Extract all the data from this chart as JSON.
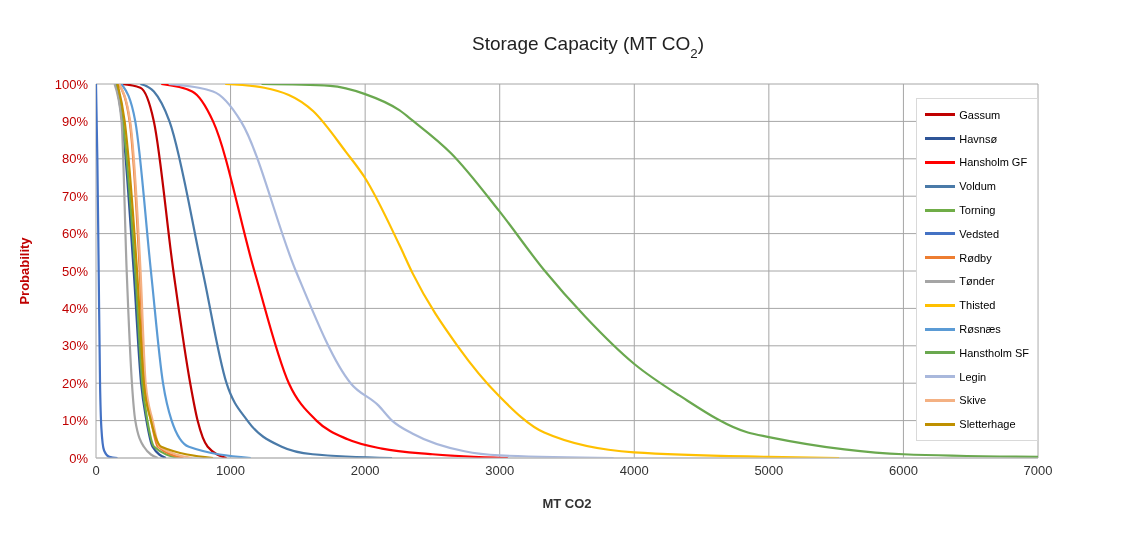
{
  "chart_data": {
    "type": "line",
    "title": "Storage Capacity (MT CO$_{2}$)",
    "xlabel": "MT CO2",
    "ylabel": "Probability",
    "xlim": [
      0,
      7000
    ],
    "xticks": [
      0,
      1000,
      2000,
      3000,
      4000,
      5000,
      6000,
      7000
    ],
    "ylim": [
      0,
      100
    ],
    "yticks": [
      {
        "value": 0,
        "label": "0%"
      },
      {
        "value": 10,
        "label": "10%"
      },
      {
        "value": 20,
        "label": "20%"
      },
      {
        "value": 30,
        "label": "30%"
      },
      {
        "value": 40,
        "label": "40%"
      },
      {
        "value": 50,
        "label": "50%"
      },
      {
        "value": 60,
        "label": "60%"
      },
      {
        "value": 70,
        "label": "70%"
      },
      {
        "value": 80,
        "label": "80%"
      },
      {
        "value": 90,
        "label": "90%"
      },
      {
        "value": 100,
        "label": "100%"
      }
    ],
    "grid": true,
    "legend": "right",
    "marker": "none",
    "line_style": "solid",
    "series": [
      {
        "name": "Gassum",
        "color": "#c00000",
        "x": [
          190,
          330,
          430,
          575,
          700,
          755,
          830,
          970
        ],
        "values": [
          100,
          99,
          90,
          50,
          20,
          10,
          3,
          0
        ]
      },
      {
        "name": "Havnsø",
        "color": "#2f5597",
        "x": [
          150,
          195,
          280,
          335,
          375,
          420,
          520
        ],
        "values": [
          100,
          90,
          50,
          20,
          10,
          3,
          0
        ]
      },
      {
        "name": "Hansholm GF",
        "color": "#ff0000",
        "x": [
          485,
          715,
          870,
          1177,
          1433,
          1638,
          1870,
          2125,
          2500,
          3060
        ],
        "values": [
          100,
          98,
          90,
          50,
          20,
          10,
          5,
          2.5,
          1,
          0
        ]
      },
      {
        "name": "Voldum",
        "color": "#4a7aa8",
        "x": [
          330,
          430,
          546,
          792,
          970,
          1125,
          1380,
          1610,
          2200
        ],
        "values": [
          100,
          98,
          90,
          50,
          20,
          10,
          3,
          1,
          0
        ]
      },
      {
        "name": "Torning",
        "color": "#70ad47",
        "x": [
          151,
          200,
          292,
          344,
          382,
          432,
          613
        ],
        "values": [
          100,
          90,
          50,
          20,
          10,
          3,
          0
        ]
      },
      {
        "name": "Vedsted",
        "color": "#4472c4",
        "x": [
          0,
          10,
          20,
          30,
          40,
          60,
          100,
          160
        ],
        "values": [
          100,
          80,
          50,
          20,
          8,
          2,
          0.3,
          0
        ]
      },
      {
        "name": "Rødby",
        "color": "#ed7d31",
        "x": [
          170,
          250,
          325,
          362,
          410,
          460,
          650
        ],
        "values": [
          100,
          90,
          50,
          20,
          10,
          3,
          0
        ]
      },
      {
        "name": "Tønder",
        "color": "#a5a5a5",
        "x": [
          138,
          190,
          228,
          267,
          292,
          356,
          460
        ],
        "values": [
          100,
          90,
          50,
          20,
          10,
          3,
          0
        ]
      },
      {
        "name": "Thisted",
        "color": "#ffc000",
        "x": [
          960,
          1250,
          1615,
          1854,
          1997,
          2254,
          2354,
          2690,
          2997,
          3331,
          3998,
          5000,
          5523
        ],
        "values": [
          100,
          99,
          92.7,
          82,
          75,
          57,
          49.3,
          29.8,
          16.5,
          6.8,
          1.5,
          0.3,
          0
        ]
      },
      {
        "name": "Røsnæs",
        "color": "#5b9bd5",
        "x": [
          190,
          292,
          408,
          498,
          562,
          690,
          1150
        ],
        "values": [
          100,
          90,
          50,
          20,
          10,
          3,
          0
        ]
      },
      {
        "name": "Hanstholm SF",
        "color": "#6aa84f",
        "x": [
          1230,
          1740,
          2000,
          2254,
          2354,
          2638,
          2997,
          3331,
          3638,
          3998,
          4331,
          4844,
          5000,
          5562,
          6000,
          7000
        ],
        "values": [
          100,
          99.5,
          97.3,
          93,
          90.2,
          81.5,
          66,
          50.2,
          37.7,
          25.2,
          16.8,
          6.8,
          5.6,
          2.3,
          1,
          0.3
        ]
      },
      {
        "name": "Legin",
        "color": "#a9b8dc",
        "x": [
          540,
          870,
          1077,
          1485,
          1892,
          2100,
          2200,
          2354,
          2738,
          3000,
          3846
        ],
        "values": [
          100,
          98,
          90,
          50,
          20,
          14,
          10,
          6.5,
          1.8,
          0.7,
          0
        ]
      },
      {
        "name": "Skive",
        "color": "#f4b183",
        "x": [
          170,
          254,
          331,
          369,
          421,
          472,
          715
        ],
        "values": [
          100,
          90,
          50,
          20,
          10,
          3,
          0
        ]
      },
      {
        "name": "Sletterhage",
        "color": "#bf9000",
        "x": [
          160,
          213,
          305,
          356,
          408,
          485,
          870
        ],
        "values": [
          100,
          90,
          50,
          20,
          10,
          3,
          0
        ]
      }
    ]
  }
}
